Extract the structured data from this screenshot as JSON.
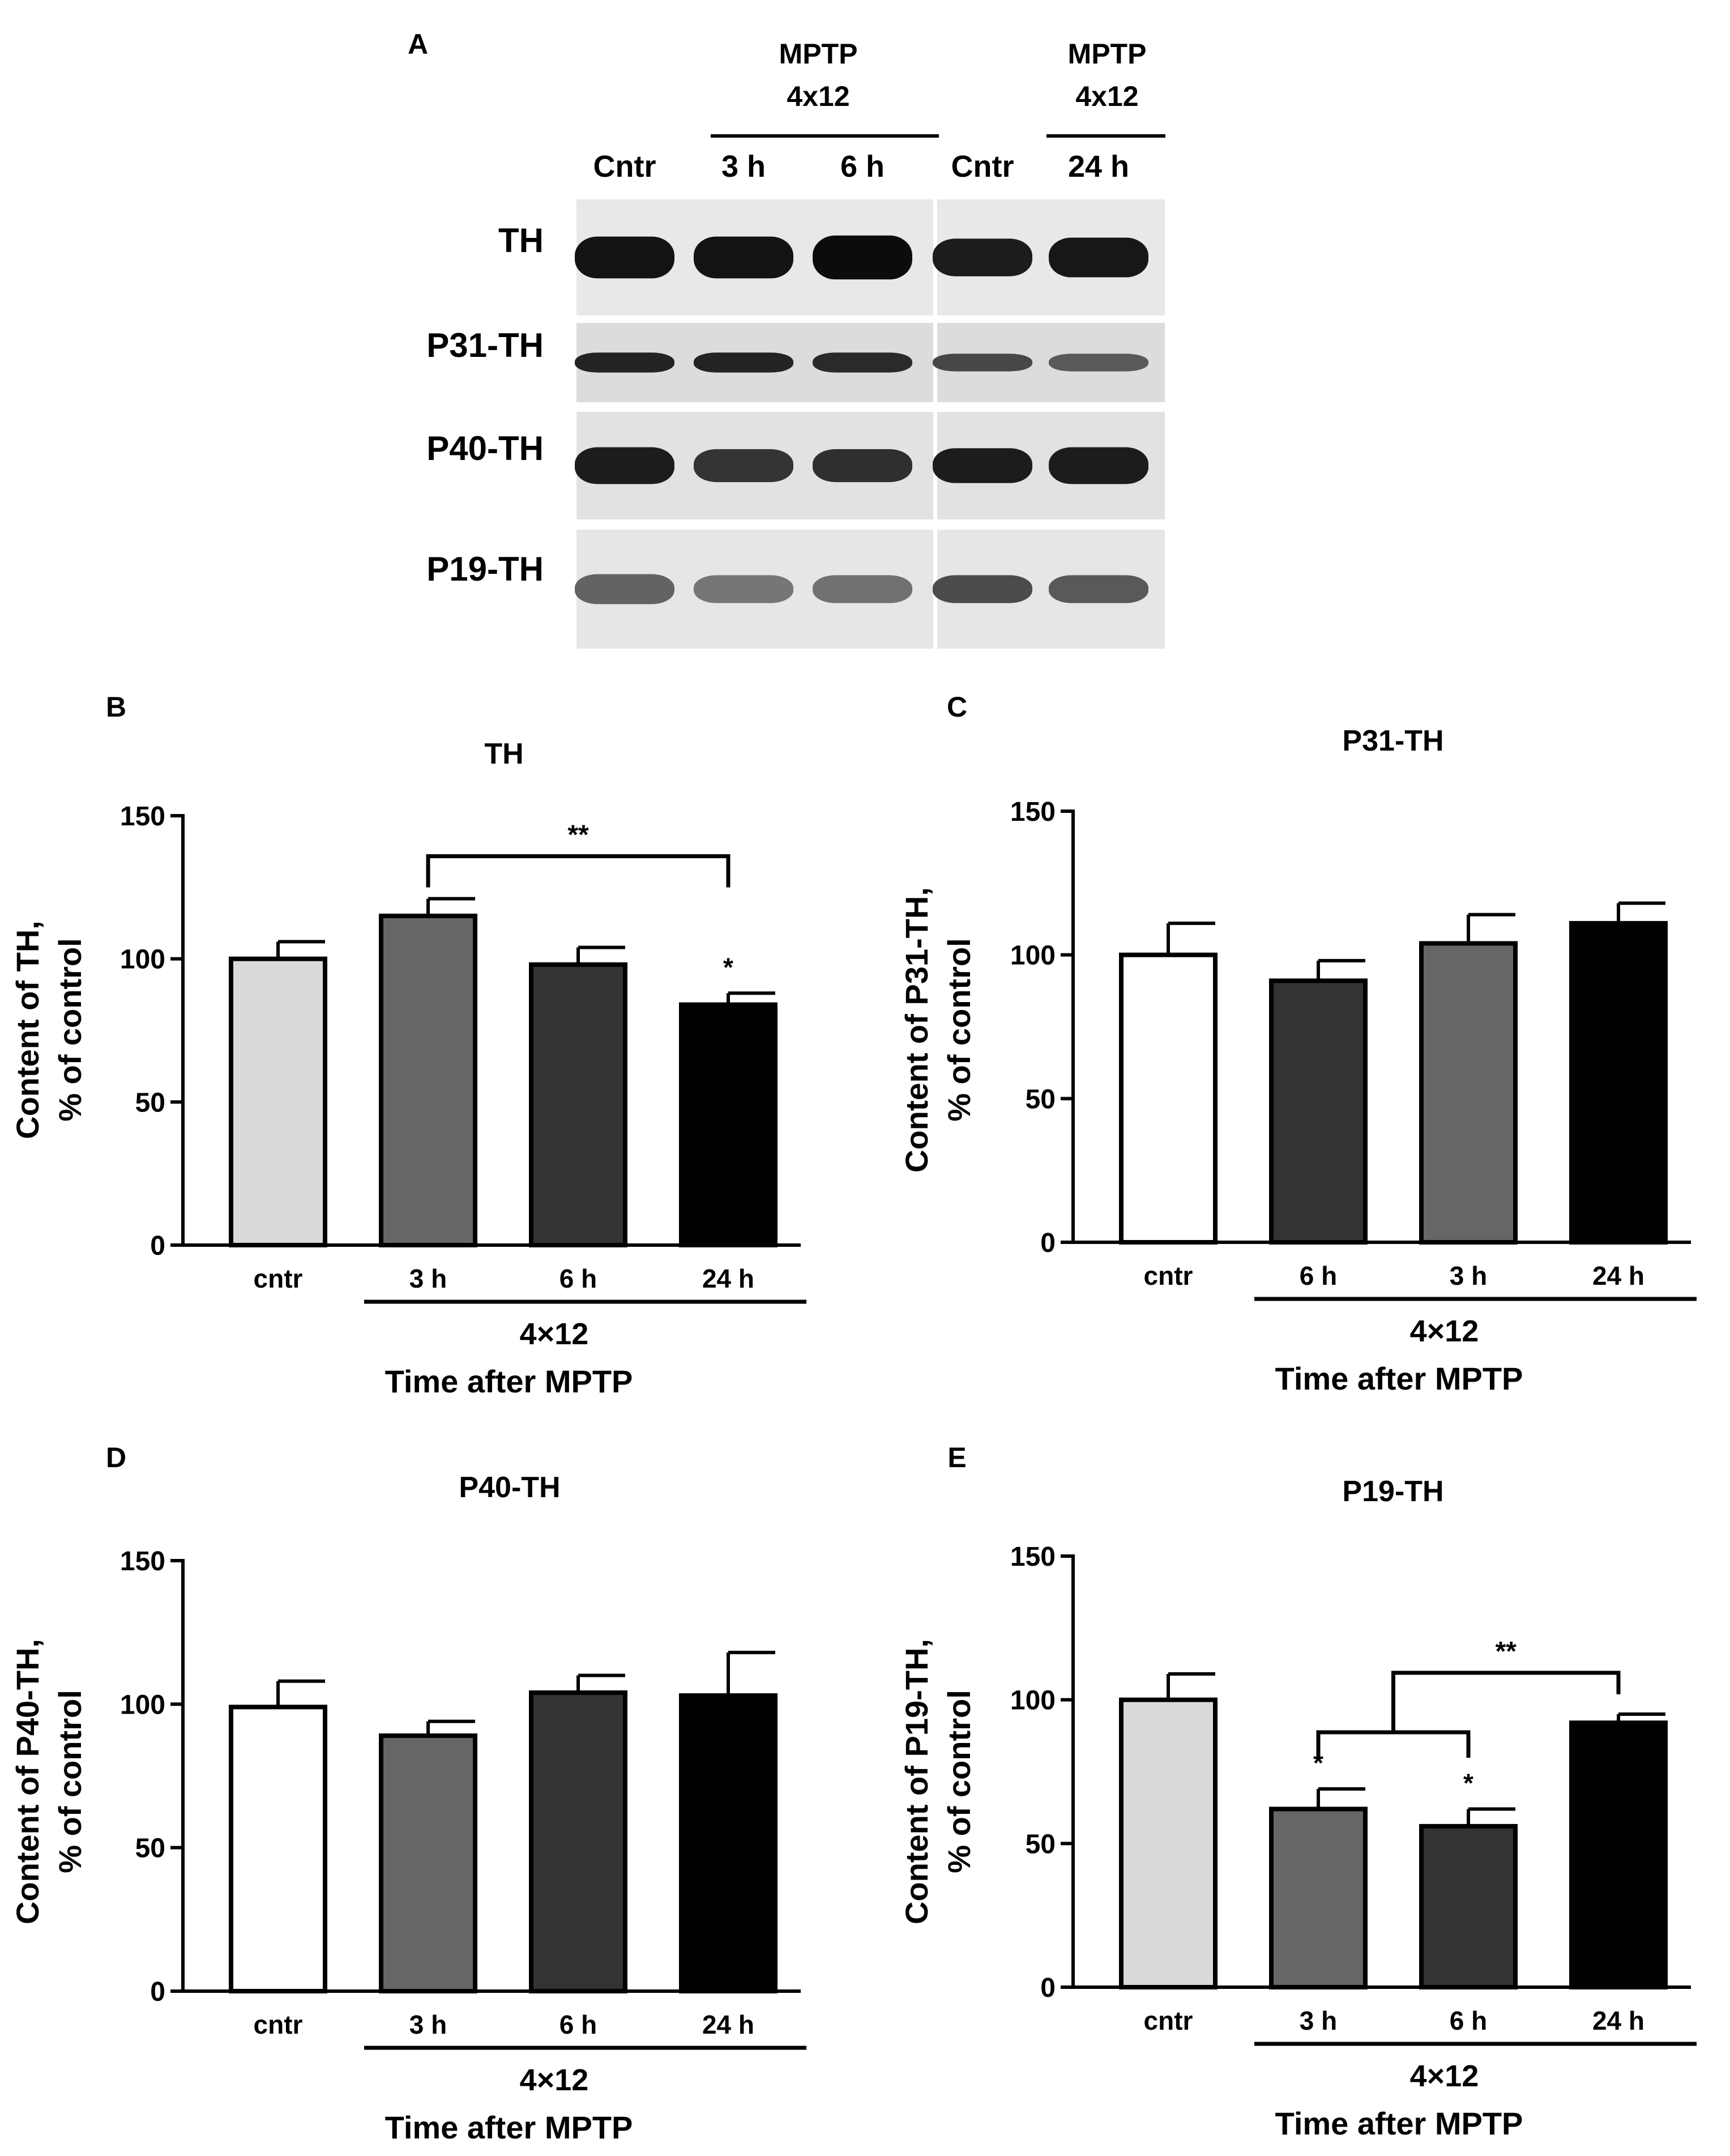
{
  "panel_a": {
    "letter": "A",
    "group_header_1": [
      "MPTP",
      "4x12"
    ],
    "group_header_2": [
      "MPTP",
      "4x12"
    ],
    "lane_labels": [
      "Cntr",
      "3 h",
      "6 h",
      "Cntr",
      "24 h"
    ],
    "blot_rows": [
      {
        "label": "TH",
        "intensity": [
          0.92,
          0.92,
          0.95,
          0.88,
          0.9
        ],
        "thickness": [
          1.0,
          1.0,
          1.05,
          0.9,
          0.95
        ]
      },
      {
        "label": "P31-TH",
        "intensity": [
          0.85,
          0.85,
          0.82,
          0.7,
          0.62
        ],
        "thickness": [
          0.7,
          0.7,
          0.7,
          0.62,
          0.62
        ]
      },
      {
        "label": "P40-TH",
        "intensity": [
          0.88,
          0.78,
          0.8,
          0.88,
          0.88
        ],
        "thickness": [
          0.95,
          0.85,
          0.85,
          0.9,
          0.95
        ]
      },
      {
        "label": "P19-TH",
        "intensity": [
          0.58,
          0.5,
          0.52,
          0.68,
          0.62
        ],
        "thickness": [
          0.7,
          0.65,
          0.65,
          0.65,
          0.65
        ]
      }
    ]
  },
  "chart_data": [
    {
      "panel": "B",
      "type": "bar",
      "title": "TH",
      "ylabel": [
        "Content of TH,",
        "% of control"
      ],
      "ylim": [
        0,
        150
      ],
      "yticks": [
        0,
        50,
        100,
        150
      ],
      "categories": [
        "cntr",
        "3 h",
        "6 h",
        "24 h"
      ],
      "values": [
        100,
        115,
        98,
        84
      ],
      "errors": [
        6,
        6,
        6,
        4
      ],
      "colors": [
        "#d9d9d9",
        "#666666",
        "#333333",
        "#000000"
      ],
      "group_label": "4×12",
      "xlabel": "Time after MPTP",
      "stars": [
        {
          "index": 3,
          "text": "*"
        }
      ],
      "brackets": [
        {
          "from": [
            1
          ],
          "to": [
            3
          ],
          "text": "**"
        }
      ]
    },
    {
      "panel": "C",
      "type": "bar",
      "title": "P31-TH",
      "ylabel": [
        "Content of P31-TH,",
        "% of control"
      ],
      "ylim": [
        0,
        150
      ],
      "yticks": [
        0,
        50,
        100,
        150
      ],
      "categories": [
        "cntr",
        "6 h",
        "3 h",
        "24 h"
      ],
      "values": [
        100,
        91,
        104,
        111
      ],
      "errors": [
        11,
        7,
        10,
        7
      ],
      "colors": [
        "#ffffff",
        "#333333",
        "#666666",
        "#000000"
      ],
      "group_label": "4×12",
      "xlabel": "Time after MPTP",
      "stars": [],
      "brackets": []
    },
    {
      "panel": "D",
      "type": "bar",
      "title": "P40-TH",
      "ylabel": [
        "Content of P40-TH,",
        "% of control"
      ],
      "ylim": [
        0,
        150
      ],
      "yticks": [
        0,
        50,
        100,
        150
      ],
      "categories": [
        "cntr",
        "3 h",
        "6 h",
        "24 h"
      ],
      "values": [
        99,
        89,
        104,
        103
      ],
      "errors": [
        9,
        5,
        6,
        15
      ],
      "colors": [
        "#ffffff",
        "#666666",
        "#333333",
        "#000000"
      ],
      "group_label": "4×12",
      "xlabel": "Time after MPTP",
      "stars": [],
      "brackets": []
    },
    {
      "panel": "E",
      "type": "bar",
      "title": "P19-TH",
      "ylabel": [
        "Content of P19-TH,",
        "% of control"
      ],
      "ylim": [
        0,
        150
      ],
      "yticks": [
        0,
        50,
        100,
        150
      ],
      "categories": [
        "cntr",
        "3 h",
        "6 h",
        "24 h"
      ],
      "values": [
        100,
        62,
        56,
        92
      ],
      "errors": [
        9,
        7,
        6,
        3
      ],
      "colors": [
        "#d9d9d9",
        "#666666",
        "#333333",
        "#000000"
      ],
      "group_label": "4×12",
      "xlabel": "Time after MPTP",
      "stars": [
        {
          "index": 1,
          "text": "*"
        },
        {
          "index": 2,
          "text": "*"
        }
      ],
      "brackets": [
        {
          "from": [
            1,
            2
          ],
          "to": [
            3
          ],
          "text": "**"
        }
      ]
    }
  ]
}
